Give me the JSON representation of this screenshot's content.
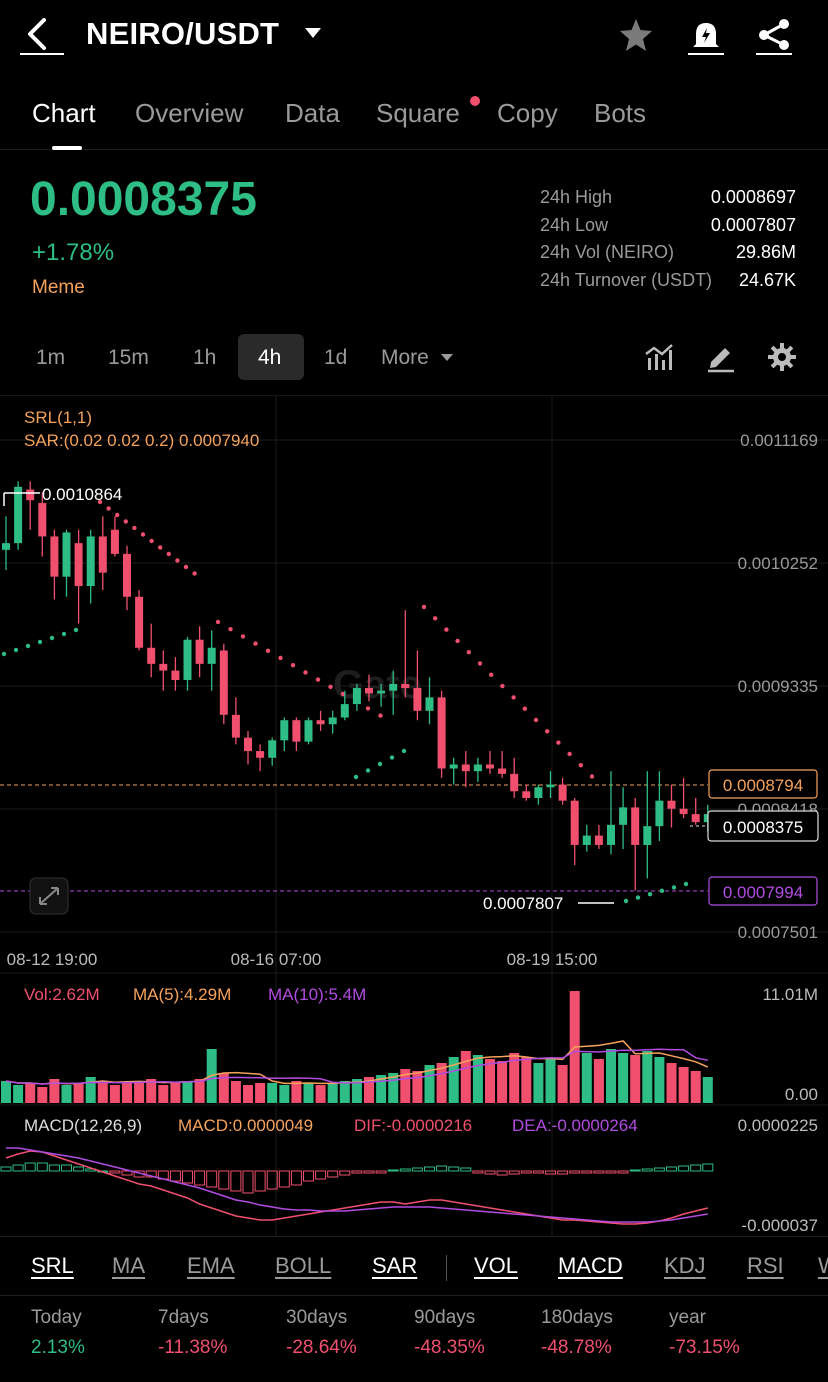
{
  "header": {
    "pair": "NEIRO/USDT",
    "icons": [
      "back-arrow-icon",
      "chevron-down-icon",
      "star-icon",
      "bell-icon",
      "share-icon"
    ]
  },
  "tabs": [
    "Chart",
    "Overview",
    "Data",
    "Square",
    "Copy",
    "Bots"
  ],
  "active_tab": "Chart",
  "ticker": {
    "price": "0.0008375",
    "change": "+1.78%",
    "tag": "Meme",
    "stats": [
      {
        "label": "24h High",
        "value": "0.0008697"
      },
      {
        "label": "24h Low",
        "value": "0.0007807"
      },
      {
        "label": "24h Vol (NEIRO)",
        "value": "29.86M"
      },
      {
        "label": "24h Turnover (USDT)",
        "value": "24.67K"
      }
    ]
  },
  "intervals": [
    "1m",
    "15m",
    "1h",
    "4h",
    "1d",
    "More"
  ],
  "active_interval": "4h",
  "chart_data": {
    "type": "candlestick",
    "indicator_main": "SRL(1,1)",
    "indicator_sar": "SAR:(0.02 0.02 0.2) 0.0007940",
    "y_ticks": [
      "0.0011169",
      "0.0010252",
      "0.0009335",
      "0.0008418",
      "0.0007501"
    ],
    "ylim": [
      0.0007501,
      0.0011169
    ],
    "x_ticks": [
      "08-12 19:00",
      "08-16 07:00",
      "08-19 15:00"
    ],
    "high_label": "0.0010864",
    "low_label": "0.0007807",
    "srl_upper": "0.0008794",
    "last_price": "0.0008375",
    "srl_lower": "0.0007994",
    "watermark": "Gate",
    "candles": [
      [
        0.001035,
        0.00106,
        0.00102,
        0.00104
      ],
      [
        0.00104,
        0.001086,
        0.001035,
        0.001082
      ],
      [
        0.00108,
        0.001086,
        0.00105,
        0.001072
      ],
      [
        0.00107,
        0.001078,
        0.00103,
        0.001045
      ],
      [
        0.001045,
        0.00105,
        0.000998,
        0.001015
      ],
      [
        0.001015,
        0.00105,
        0.001,
        0.001048
      ],
      [
        0.00104,
        0.00105,
        0.00098,
        0.001008
      ],
      [
        0.001008,
        0.00105,
        0.000995,
        0.001045
      ],
      [
        0.001045,
        0.00106,
        0.001005,
        0.001018
      ],
      [
        0.00105,
        0.00106,
        0.00103,
        0.001032
      ],
      [
        0.001032,
        0.001038,
        0.00099,
        0.001
      ],
      [
        0.001,
        0.001005,
        0.00096,
        0.000962
      ],
      [
        0.000962,
        0.00098,
        0.00094,
        0.00095
      ],
      [
        0.00095,
        0.00096,
        0.00093,
        0.000945
      ],
      [
        0.000945,
        0.000955,
        0.00093,
        0.000938
      ],
      [
        0.000938,
        0.00097,
        0.00093,
        0.000968
      ],
      [
        0.000968,
        0.000978,
        0.00094,
        0.00095
      ],
      [
        0.00095,
        0.000975,
        0.00093,
        0.000962
      ],
      [
        0.00096,
        0.000965,
        0.000905,
        0.000912
      ],
      [
        0.000912,
        0.000925,
        0.00089,
        0.000895
      ],
      [
        0.000895,
        0.0009,
        0.000875,
        0.000885
      ],
      [
        0.000885,
        0.00089,
        0.00087,
        0.00088
      ],
      [
        0.00088,
        0.000895,
        0.000874,
        0.000893
      ],
      [
        0.000893,
        0.00091,
        0.000885,
        0.000908
      ],
      [
        0.000908,
        0.00091,
        0.000885,
        0.000892
      ],
      [
        0.000892,
        0.00091,
        0.00089,
        0.000908
      ],
      [
        0.000908,
        0.000915,
        0.0009,
        0.000905
      ],
      [
        0.000905,
        0.000915,
        0.000898,
        0.00091
      ],
      [
        0.00091,
        0.00093,
        0.000908,
        0.00092
      ],
      [
        0.00092,
        0.000935,
        0.000915,
        0.000932
      ],
      [
        0.000932,
        0.000942,
        0.000922,
        0.000928
      ],
      [
        0.000928,
        0.000935,
        0.000918,
        0.00093
      ],
      [
        0.00093,
        0.000945,
        0.000912,
        0.000935
      ],
      [
        0.000935,
        0.00099,
        0.000925,
        0.000932
      ],
      [
        0.000932,
        0.00096,
        0.000908,
        0.000915
      ],
      [
        0.000915,
        0.00094,
        0.000905,
        0.000925
      ],
      [
        0.000925,
        0.00093,
        0.000865,
        0.000872
      ],
      [
        0.000872,
        0.00088,
        0.00086,
        0.000875
      ],
      [
        0.000875,
        0.000885,
        0.000858,
        0.00087
      ],
      [
        0.00087,
        0.00088,
        0.000862,
        0.000875
      ],
      [
        0.000875,
        0.000885,
        0.000868,
        0.000872
      ],
      [
        0.000872,
        0.000885,
        0.000865,
        0.000868
      ],
      [
        0.000868,
        0.00088,
        0.00085,
        0.000855
      ],
      [
        0.000855,
        0.00086,
        0.000848,
        0.00085
      ],
      [
        0.00085,
        0.00086,
        0.000845,
        0.000858
      ],
      [
        0.000858,
        0.00087,
        0.00085,
        0.00086
      ],
      [
        0.00086,
        0.000865,
        0.000845,
        0.000848
      ],
      [
        0.000848,
        0.00085,
        0.0008,
        0.000815
      ],
      [
        0.000815,
        0.00083,
        0.00081,
        0.000822
      ],
      [
        0.000822,
        0.00083,
        0.000812,
        0.000815
      ],
      [
        0.000815,
        0.00087,
        0.000808,
        0.00083
      ],
      [
        0.00083,
        0.000858,
        0.000812,
        0.000843
      ],
      [
        0.000843,
        0.00085,
        0.000781,
        0.000815
      ],
      [
        0.000815,
        0.00087,
        0.00079,
        0.000829
      ],
      [
        0.000829,
        0.00087,
        0.000818,
        0.000848
      ],
      [
        0.000848,
        0.00086,
        0.000828,
        0.000842
      ],
      [
        0.000842,
        0.000865,
        0.000835,
        0.000838
      ],
      [
        0.000838,
        0.00085,
        0.00083,
        0.000832
      ],
      [
        0.000832,
        0.000845,
        0.000825,
        0.000838
      ]
    ]
  },
  "volume_panel": {
    "vol": "Vol:2.62M",
    "ma5": "MA(5):4.29M",
    "ma10": "MA(10):5.4M",
    "y_max": "11.01M",
    "y_min": "0.00"
  },
  "macd_panel": {
    "title": "MACD(12,26,9)",
    "macd": "MACD:0.0000049",
    "dif": "DIF:-0.0000216",
    "dea": "DEA:-0.0000264",
    "y_max": "0.0000225",
    "y_min": "-0.000037"
  },
  "indicators": [
    {
      "label": "SRL",
      "on": true
    },
    {
      "label": "MA",
      "on": false
    },
    {
      "label": "EMA",
      "on": false
    },
    {
      "label": "BOLL",
      "on": false
    },
    {
      "label": "SAR",
      "on": true
    },
    {
      "label": "VOL",
      "on": true
    },
    {
      "label": "MACD",
      "on": true
    },
    {
      "label": "KDJ",
      "on": false
    },
    {
      "label": "RSI",
      "on": false
    },
    {
      "label": "W",
      "on": false
    }
  ],
  "performance": [
    {
      "label": "Today",
      "value": "2.13%",
      "trend": "up"
    },
    {
      "label": "7days",
      "value": "-11.38%",
      "trend": "down"
    },
    {
      "label": "30days",
      "value": "-28.64%",
      "trend": "down"
    },
    {
      "label": "90days",
      "value": "-48.35%",
      "trend": "down"
    },
    {
      "label": "180days",
      "value": "-48.78%",
      "trend": "down"
    },
    {
      "label": "year",
      "value": "-73.15%",
      "trend": "down"
    }
  ],
  "colors": {
    "up": "#2ebd85",
    "down": "#f0506e",
    "sar": "#f0506e",
    "srl_upper": "#f5a25d",
    "srl_lower": "#b14ce0",
    "ma5": "#f5a25d",
    "ma10": "#b14ce0"
  }
}
